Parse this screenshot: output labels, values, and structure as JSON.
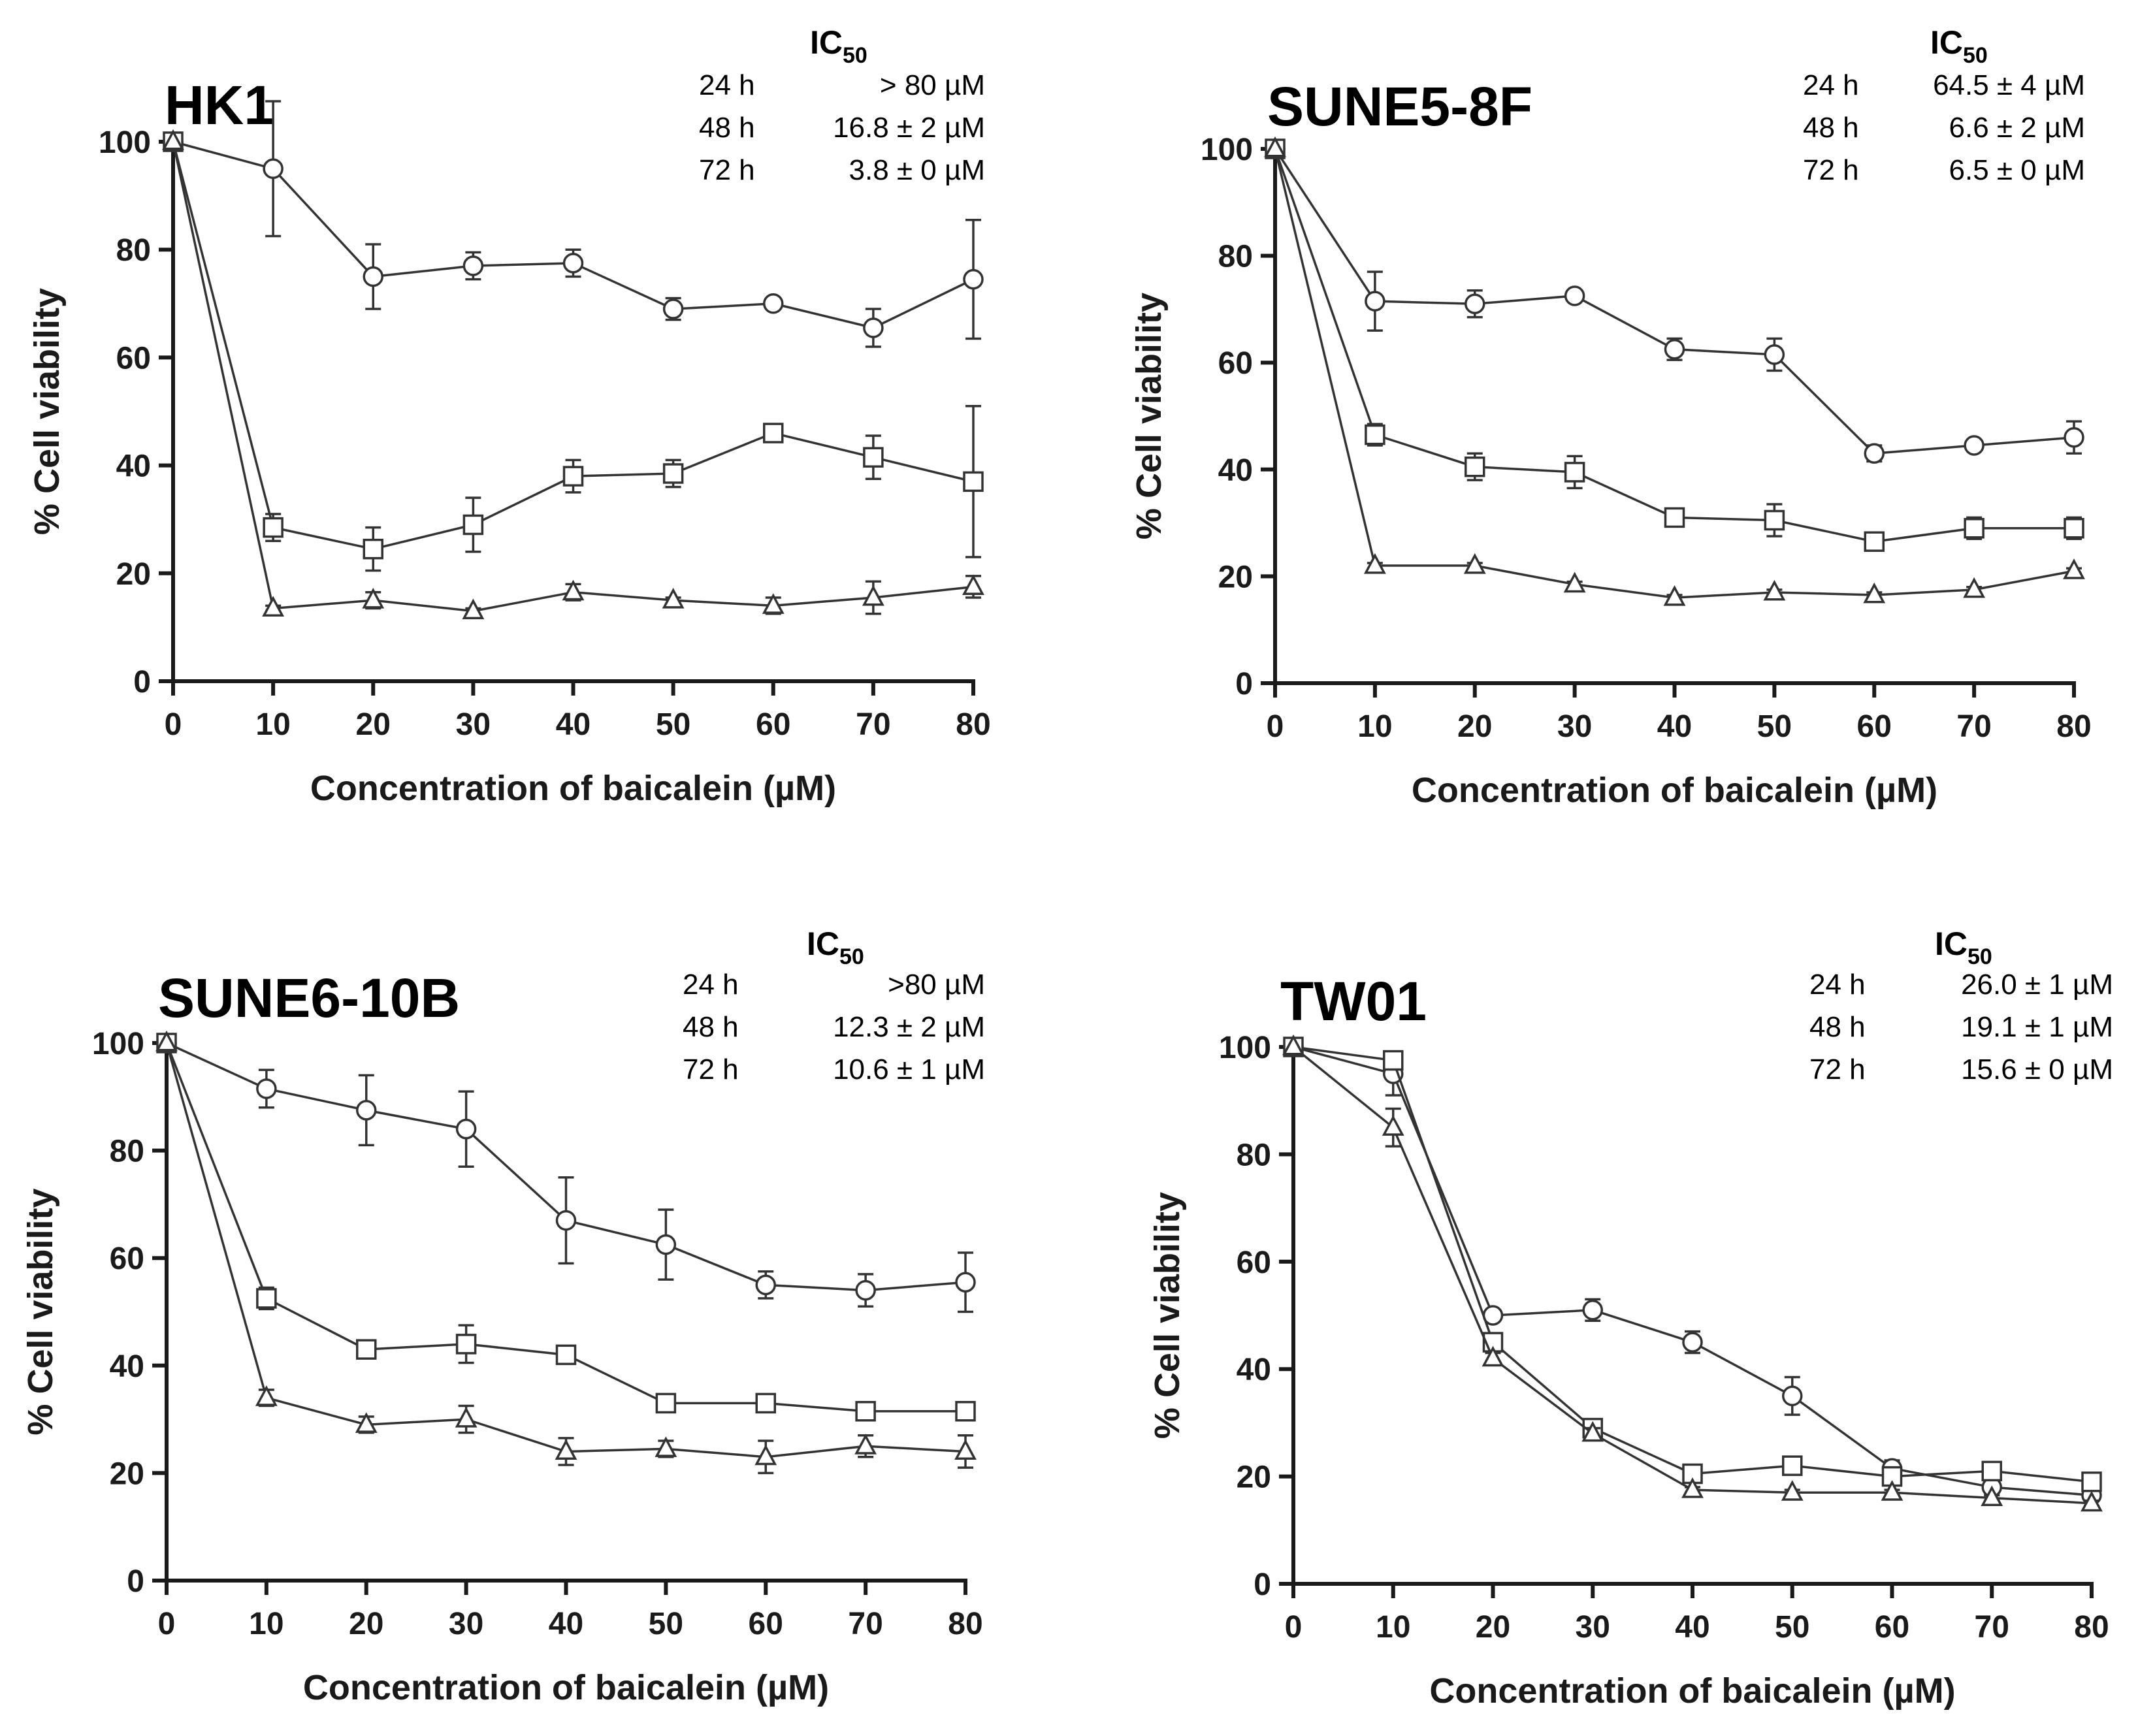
{
  "colors": {
    "line": "#333333",
    "axis": "#1a1a1a",
    "background": "#ffffff"
  },
  "ic_heading": {
    "base": "IC",
    "subscript": "50"
  },
  "chart_data": [
    {
      "type": "line",
      "title": "HK1",
      "xlabel": "Concentration of baicalein (µM)",
      "ylabel": "% Cell viability",
      "xlim": [
        0,
        80
      ],
      "ylim": [
        0,
        100
      ],
      "xticks": [
        "0",
        "10",
        "20",
        "30",
        "40",
        "50",
        "60",
        "70",
        "80"
      ],
      "yticks": [
        "0",
        "20",
        "40",
        "60",
        "80",
        "100"
      ],
      "x": [
        0,
        10,
        20,
        30,
        40,
        50,
        60,
        70,
        80
      ],
      "ic50": [
        {
          "time": "24 h",
          "value": "> 80 µM"
        },
        {
          "time": "48 h",
          "value": "16.8 ± 2 µM"
        },
        {
          "time": "72 h",
          "value": "3.8 ± 0 µM"
        }
      ],
      "series": [
        {
          "marker": "circle",
          "values": [
            100,
            95,
            75,
            77,
            77.5,
            69,
            70,
            65.5,
            74.5
          ],
          "errors": [
            0,
            12.5,
            6,
            2.5,
            2.5,
            2,
            0.5,
            3.5,
            11
          ]
        },
        {
          "marker": "square",
          "values": [
            100,
            28.5,
            24.5,
            29,
            38,
            38.5,
            46,
            41.5,
            37
          ],
          "errors": [
            0,
            2.5,
            4,
            5,
            3,
            2.5,
            0.5,
            4,
            14
          ]
        },
        {
          "marker": "triangle",
          "values": [
            100,
            13.5,
            15,
            13,
            16.5,
            15,
            14,
            15.5,
            17.5
          ],
          "errors": [
            0,
            0.5,
            1.5,
            0.5,
            1.5,
            0.5,
            1.5,
            3,
            2
          ]
        }
      ]
    },
    {
      "type": "line",
      "title": "SUNE5-8F",
      "xlabel": "Concentration of baicalein (µM)",
      "ylabel": "% Cell viability",
      "xlim": [
        0,
        80
      ],
      "ylim": [
        0,
        100
      ],
      "xticks": [
        "0",
        "10",
        "20",
        "30",
        "40",
        "50",
        "60",
        "70",
        "80"
      ],
      "yticks": [
        "0",
        "20",
        "40",
        "60",
        "80",
        "100"
      ],
      "x": [
        0,
        10,
        20,
        30,
        40,
        50,
        60,
        70,
        80
      ],
      "ic50": [
        {
          "time": "24 h",
          "value": "64.5 ± 4 µM"
        },
        {
          "time": "48 h",
          "value": "6.6 ± 2 µM"
        },
        {
          "time": "72 h",
          "value": "6.5 ± 0 µM"
        }
      ],
      "series": [
        {
          "marker": "circle",
          "values": [
            100,
            71.5,
            71,
            72.5,
            62.5,
            61.5,
            43,
            44.5,
            46
          ],
          "errors": [
            0,
            5.5,
            2.5,
            0.5,
            2,
            3,
            1.5,
            0.5,
            3
          ]
        },
        {
          "marker": "square",
          "values": [
            100,
            46.5,
            40.5,
            39.5,
            31,
            30.5,
            26.5,
            29,
            29
          ],
          "errors": [
            0,
            2,
            2.5,
            3,
            0.5,
            3,
            0.5,
            2,
            2
          ]
        },
        {
          "marker": "triangle",
          "values": [
            100,
            22,
            22,
            18.5,
            16,
            17,
            16.5,
            17.5,
            21
          ],
          "errors": [
            0,
            0.5,
            0.5,
            0.5,
            0.5,
            0.5,
            0.5,
            0.5,
            0.5
          ]
        }
      ]
    },
    {
      "type": "line",
      "title": "SUNE6-10B",
      "xlabel": "Concentration of baicalein (µM)",
      "ylabel": "% Cell viability",
      "xlim": [
        0,
        80
      ],
      "ylim": [
        0,
        100
      ],
      "xticks": [
        "0",
        "10",
        "20",
        "30",
        "40",
        "50",
        "60",
        "70",
        "80"
      ],
      "yticks": [
        "0",
        "20",
        "40",
        "60",
        "80",
        "100"
      ],
      "x": [
        0,
        10,
        20,
        30,
        40,
        50,
        60,
        70,
        80
      ],
      "ic50": [
        {
          "time": "24 h",
          "value": ">80 µM"
        },
        {
          "time": "48 h",
          "value": "12.3 ± 2 µM"
        },
        {
          "time": "72 h",
          "value": "10.6 ± 1 µM"
        }
      ],
      "series": [
        {
          "marker": "circle",
          "values": [
            100,
            91.5,
            87.5,
            84,
            67,
            62.5,
            55,
            54,
            55.5
          ],
          "errors": [
            0,
            3.5,
            6.5,
            7,
            8,
            6.5,
            2.5,
            3,
            5.5
          ]
        },
        {
          "marker": "square",
          "values": [
            100,
            52.5,
            43,
            44,
            42,
            33,
            33,
            31.5,
            31.5
          ],
          "errors": [
            0,
            2,
            1,
            3.5,
            0.5,
            0.5,
            0.5,
            1,
            0.5
          ]
        },
        {
          "marker": "triangle",
          "values": [
            100,
            34,
            29,
            30,
            24,
            24.5,
            23,
            25,
            24
          ],
          "errors": [
            0,
            1.5,
            1.5,
            2.5,
            2.5,
            1.5,
            3,
            2,
            3
          ]
        }
      ]
    },
    {
      "type": "line",
      "title": "TW01",
      "xlabel": "Concentration of baicalein (µM)",
      "ylabel": "% Cell viability",
      "xlim": [
        0,
        80
      ],
      "ylim": [
        0,
        100
      ],
      "xticks": [
        "0",
        "10",
        "20",
        "30",
        "40",
        "50",
        "60",
        "70",
        "80"
      ],
      "yticks": [
        "0",
        "20",
        "40",
        "60",
        "80",
        "100"
      ],
      "x": [
        0,
        10,
        20,
        30,
        40,
        50,
        60,
        70,
        80
      ],
      "ic50": [
        {
          "time": "24 h",
          "value": "26.0 ± 1 µM"
        },
        {
          "time": "48 h",
          "value": "19.1 ± 1 µM"
        },
        {
          "time": "72 h",
          "value": "15.6 ± 0 µM"
        }
      ],
      "series": [
        {
          "marker": "circle",
          "values": [
            100,
            95,
            50,
            51,
            45,
            35,
            21.5,
            18,
            16.5
          ],
          "errors": [
            0,
            4,
            0.5,
            2,
            2,
            3.5,
            1.5,
            0.5,
            0.5
          ]
        },
        {
          "marker": "square",
          "values": [
            100,
            97.5,
            45,
            29,
            20.5,
            22,
            20,
            21,
            19
          ],
          "errors": [
            0,
            1.5,
            1,
            1.5,
            0.5,
            0.5,
            0.5,
            0.5,
            0.5
          ]
        },
        {
          "marker": "triangle",
          "values": [
            100,
            85,
            42,
            28,
            17.5,
            17,
            17,
            16,
            15
          ],
          "errors": [
            0,
            3.5,
            1,
            1,
            0.5,
            0.5,
            0.5,
            0.5,
            0.5
          ]
        }
      ]
    }
  ]
}
